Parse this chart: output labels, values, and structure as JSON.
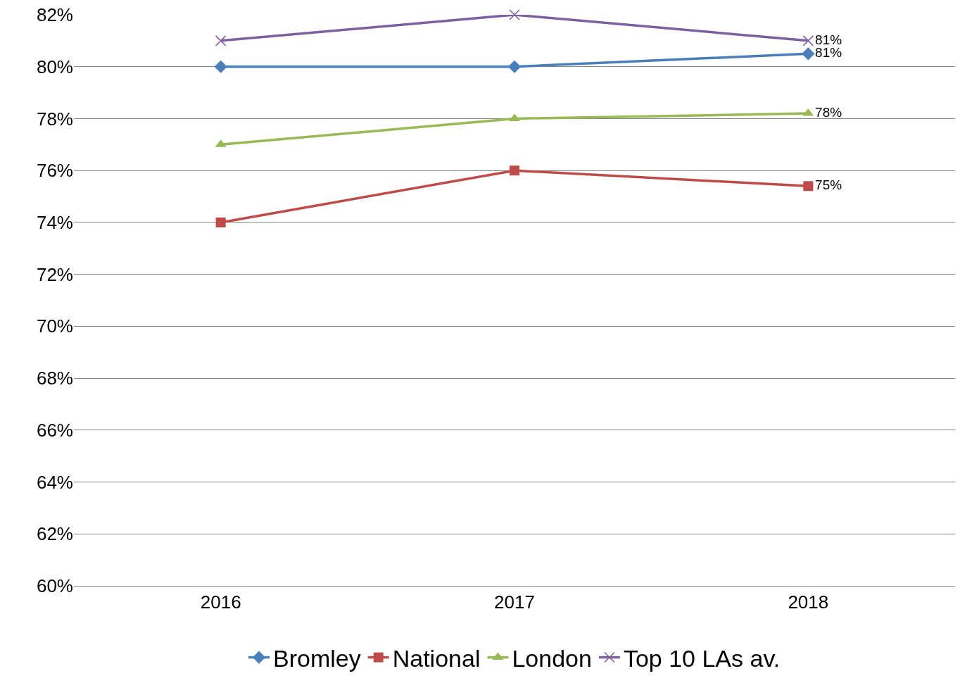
{
  "chart_data": {
    "type": "line",
    "categories": [
      "2016",
      "2017",
      "2018"
    ],
    "series": [
      {
        "name": "Bromley",
        "color": "#4a7ebb",
        "marker": "diamond",
        "values": [
          80,
          80,
          80.5
        ],
        "value_labels": [
          null,
          null,
          "81%"
        ]
      },
      {
        "name": "National",
        "color": "#be4b48",
        "marker": "square",
        "values": [
          74,
          76,
          75.4
        ],
        "value_labels": [
          null,
          null,
          "75%"
        ]
      },
      {
        "name": "London",
        "color": "#98b954",
        "marker": "triangle",
        "values": [
          77,
          78,
          78.2
        ],
        "value_labels": [
          null,
          null,
          "78%"
        ]
      },
      {
        "name": "Top 10 LAs av.",
        "color": "#7d60a0",
        "marker": "cross",
        "values": [
          81,
          82,
          81
        ],
        "value_labels": [
          null,
          null,
          "81%"
        ]
      }
    ],
    "ylim": [
      60,
      82
    ],
    "yticks": [
      {
        "value": 60,
        "label": "60%"
      },
      {
        "value": 62,
        "label": "62%"
      },
      {
        "value": 64,
        "label": "64%"
      },
      {
        "value": 66,
        "label": "66%"
      },
      {
        "value": 68,
        "label": "68%"
      },
      {
        "value": 70,
        "label": "70%"
      },
      {
        "value": 72,
        "label": "72%"
      },
      {
        "value": 74,
        "label": "74%"
      },
      {
        "value": 76,
        "label": "76%"
      },
      {
        "value": 78,
        "label": "78%"
      },
      {
        "value": 80,
        "label": "80%"
      },
      {
        "value": 82,
        "label": "82%"
      }
    ],
    "grid": "y",
    "legend": "bottom",
    "line_style": "solid"
  }
}
